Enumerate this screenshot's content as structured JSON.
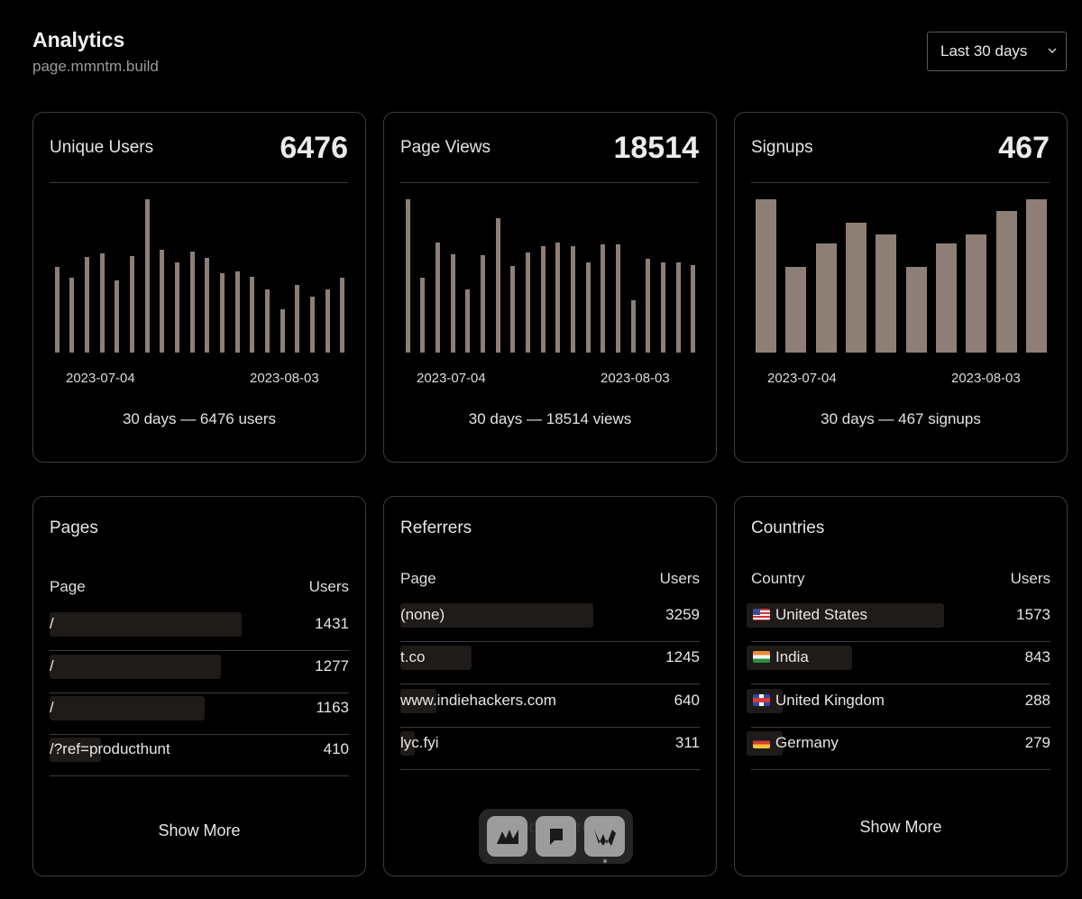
{
  "header": {
    "title": "Analytics",
    "subtitle": "page.mmntm.build",
    "range": "Last 30 days"
  },
  "stats": [
    {
      "label": "Unique Users",
      "value": "6476",
      "summary": "30 days — 6476 users",
      "tick_start": "2023-07-04",
      "tick_end": "2023-08-03",
      "chart_data": {
        "type": "bar",
        "xlabel": "",
        "ylabel": "",
        "x_tick_labels": [
          "2023-07-04",
          "2023-08-03"
        ],
        "values": [
          160,
          139,
          178,
          185,
          135,
          180,
          286,
          191,
          168,
          189,
          176,
          148,
          152,
          142,
          117,
          81,
          126,
          104,
          118,
          140
        ]
      }
    },
    {
      "label": "Page Views",
      "value": "18514",
      "summary": "30 days — 18514 views",
      "tick_start": "2023-07-04",
      "tick_end": "2023-08-03",
      "chart_data": {
        "type": "bar",
        "xlabel": "",
        "ylabel": "",
        "x_tick_labels": [
          "2023-07-04",
          "2023-08-03"
        ],
        "values": [
          1090,
          532,
          785,
          698,
          446,
          691,
          955,
          615,
          713,
          756,
          785,
          756,
          640,
          771,
          771,
          372,
          669,
          640,
          640,
          625
        ]
      }
    },
    {
      "label": "Signups",
      "value": "467",
      "summary": "30 days — 467 signups",
      "tick_start": "2023-07-04",
      "tick_end": "2023-08-03",
      "chart_data": {
        "type": "bar",
        "xlabel": "",
        "ylabel": "",
        "x_tick_labels": [
          "2023-07-04",
          "2023-08-03"
        ],
        "values": [
          52,
          29,
          37,
          44,
          40,
          29,
          37,
          40,
          48,
          52
        ]
      }
    }
  ],
  "pages": {
    "title": "Pages",
    "col_page": "Page",
    "col_users": "Users",
    "rows": [
      {
        "label": "/",
        "value": "1431"
      },
      {
        "label": "/",
        "value": "1277"
      },
      {
        "label": "/",
        "value": "1163"
      },
      {
        "label": "/?ref=producthunt",
        "value": "410"
      }
    ],
    "show_more": "Show More"
  },
  "referrers": {
    "title": "Referrers",
    "col_page": "Page",
    "col_users": "Users",
    "rows": [
      {
        "label": "(none)",
        "value": "3259"
      },
      {
        "label": "t.co",
        "value": "1245"
      },
      {
        "label": "www.indiehackers.com",
        "value": "640"
      },
      {
        "label": "lyc.fyi",
        "value": "311"
      }
    ],
    "show_more": "Show More"
  },
  "countries": {
    "title": "Countries",
    "col_country": "Country",
    "col_users": "Users",
    "rows": [
      {
        "label": "United States",
        "value": "1573",
        "flag": "flag-us"
      },
      {
        "label": "India",
        "value": "843",
        "flag": "flag-in"
      },
      {
        "label": "United Kingdom",
        "value": "288",
        "flag": "flag-uk"
      },
      {
        "label": "Germany",
        "value": "279",
        "flag": "flag-de"
      }
    ],
    "show_more": "Show More"
  },
  "dock": {
    "items": [
      "mmntm-app-icon",
      "message-app-icon",
      "writer-app-icon"
    ]
  },
  "colors": {
    "background": "#000000",
    "card_border": "#3c3c3c",
    "bar": "#8d7f76",
    "row_fill": "#1f1b19"
  }
}
